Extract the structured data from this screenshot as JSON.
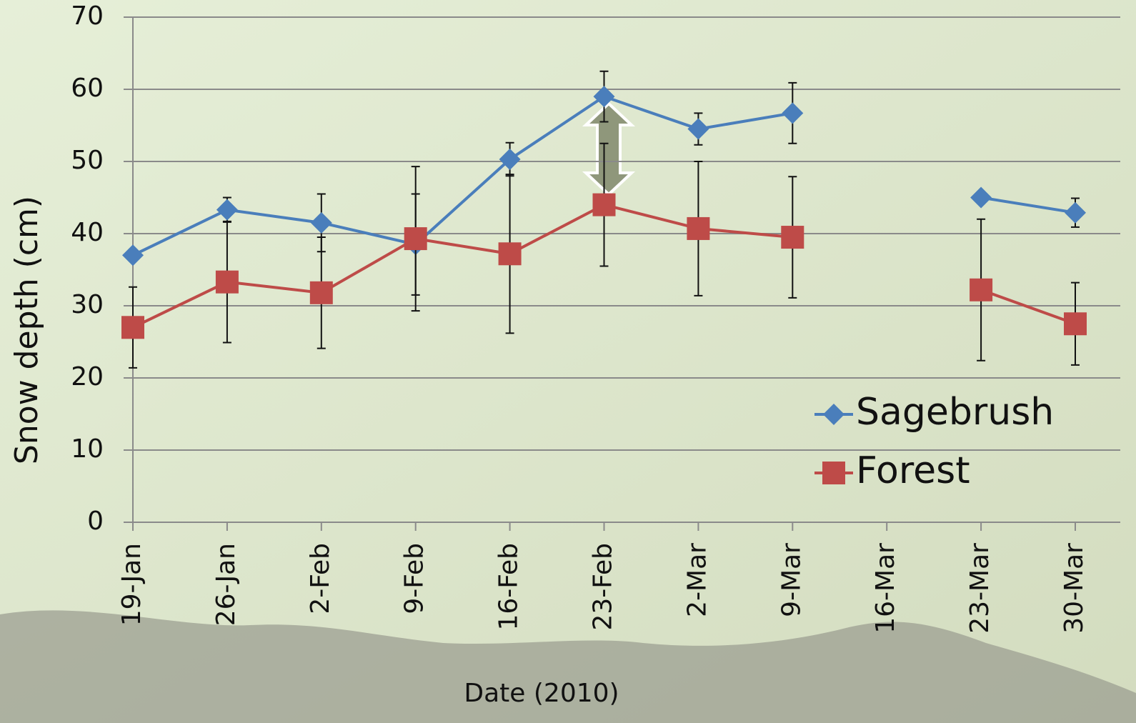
{
  "chart_data": {
    "type": "line",
    "x_label": "Date (2010)",
    "y_label": "Snow depth (cm)",
    "categories": [
      "19-Jan",
      "26-Jan",
      "2-Feb",
      "9-Feb",
      "16-Feb",
      "23-Feb",
      "2-Mar",
      "9-Mar",
      "16-Mar",
      "23-Mar",
      "30-Mar"
    ],
    "series": [
      {
        "name": "Sagebrush",
        "color": "#4a7ebb",
        "marker": "diamond",
        "values": [
          37,
          43.3,
          41.5,
          38.5,
          50.3,
          59,
          54.5,
          56.7,
          null,
          45,
          42.9
        ],
        "errors": [
          null,
          1.7,
          4,
          7,
          2.3,
          3.5,
          2.2,
          4.2,
          null,
          null,
          2
        ]
      },
      {
        "name": "Forest",
        "color": "#be4b48",
        "marker": "square",
        "values": [
          27,
          33.3,
          31.8,
          39.3,
          37.2,
          44,
          40.7,
          39.5,
          null,
          32.2,
          27.5
        ],
        "errors": [
          5.6,
          8.4,
          7.7,
          10,
          11,
          8.5,
          9.3,
          8.4,
          null,
          9.8,
          5.7
        ]
      }
    ],
    "ylim": [
      0,
      70
    ],
    "yticks": [
      0,
      10,
      20,
      30,
      40,
      50,
      60,
      70
    ],
    "grid": true,
    "legend": "lower right"
  }
}
